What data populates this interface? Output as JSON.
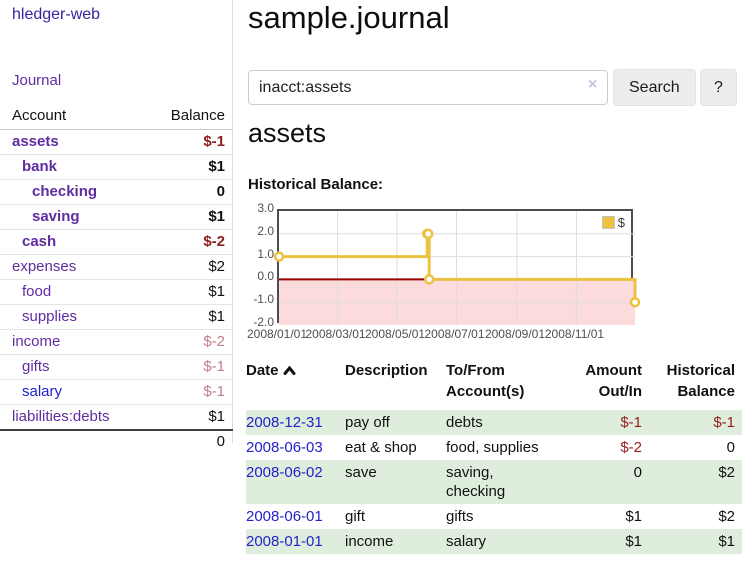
{
  "colors": {
    "brand_purple": "#3b22a0",
    "link_purple": "#5f2da0",
    "link_blue": "#2222cc",
    "negative_strong": "#8f1d1d",
    "negative": "#971c1c",
    "negative_muted": "#c1808c",
    "row_green": "#dfeedc",
    "chart_line_gold": "#edc240",
    "chart_negative_region": "#fbdbdb",
    "chart_zero_line": "#990000",
    "chart_grid": "#dddddd"
  },
  "app_title": "hledger-web",
  "sidebar": {
    "journal_link": "Journal",
    "account_header": "Account",
    "balance_header": "Balance",
    "accounts": [
      {
        "name": "assets",
        "balance": "$-1",
        "level": 0,
        "bold": true,
        "balance_style": "neg-strong"
      },
      {
        "name": "bank",
        "balance": "$1",
        "level": 1,
        "bold": true,
        "balance_style": "pos"
      },
      {
        "name": "checking",
        "balance": "0",
        "level": 2,
        "bold": true,
        "balance_style": "pos"
      },
      {
        "name": "saving",
        "balance": "$1",
        "level": 2,
        "bold": true,
        "balance_style": "pos"
      },
      {
        "name": "cash",
        "balance": "$-2",
        "level": 1,
        "bold": true,
        "balance_style": "neg-strong"
      },
      {
        "name": "expenses",
        "balance": "$2",
        "level": 0,
        "bold": false,
        "balance_style": "pos"
      },
      {
        "name": "food",
        "balance": "$1",
        "level": 1,
        "bold": false,
        "balance_style": "pos"
      },
      {
        "name": "supplies",
        "balance": "$1",
        "level": 1,
        "bold": false,
        "balance_style": "pos"
      },
      {
        "name": "income",
        "balance": "$-2",
        "level": 0,
        "bold": false,
        "balance_style": "neg-muted"
      },
      {
        "name": "gifts",
        "balance": "$-1",
        "level": 1,
        "bold": false,
        "balance_style": "neg-muted"
      },
      {
        "name": "salary",
        "balance": "$-1",
        "level": 1,
        "bold": false,
        "balance_style": "neg-muted",
        "link_color": "blue"
      },
      {
        "name": "liabilities:debts",
        "balance": "$1",
        "level": 0,
        "bold": false,
        "balance_style": "pos"
      }
    ],
    "total": "0"
  },
  "header": {
    "title": "sample.journal"
  },
  "search": {
    "value": "inacct:assets",
    "clear_icon": "×",
    "search_button": "Search",
    "help_button": "?"
  },
  "account_page": {
    "heading": "assets",
    "chart_label": "Historical Balance:"
  },
  "chart_data": {
    "type": "line",
    "title": "Historical Balance",
    "step": true,
    "legend": {
      "label": "$",
      "position": "top-right"
    },
    "xlim": [
      "2008-01-01",
      "2008-12-31"
    ],
    "ylim": [
      -2,
      3
    ],
    "x_ticks": [
      {
        "label": "2008/01/01",
        "date": "2008-01-01"
      },
      {
        "label": "2008/03/01",
        "date": "2008-03-01"
      },
      {
        "label": "2008/05/01",
        "date": "2008-05-01"
      },
      {
        "label": "2008/07/01",
        "date": "2008-07-01"
      },
      {
        "label": "2008/09/01",
        "date": "2008-09-01"
      },
      {
        "label": "2008/11/01",
        "date": "2008-11-01"
      }
    ],
    "y_ticks": [
      {
        "label": "3.0",
        "value": 3
      },
      {
        "label": "2.0",
        "value": 2
      },
      {
        "label": "1.0",
        "value": 1
      },
      {
        "label": "0.0",
        "value": 0
      },
      {
        "label": "-1.0",
        "value": -1
      },
      {
        "label": "-2.0",
        "value": -2
      }
    ],
    "series": [
      {
        "name": "$",
        "points": [
          [
            "2008-01-01",
            1
          ],
          [
            "2008-06-01",
            2
          ],
          [
            "2008-06-02",
            2
          ],
          [
            "2008-06-03",
            0
          ],
          [
            "2008-12-31",
            -1
          ]
        ]
      }
    ]
  },
  "register": {
    "headers": {
      "date": "Date",
      "description": "Description",
      "accounts": "To/From Account(s)",
      "amount": "Amount Out/In",
      "balance": "Historical Balance"
    },
    "rows": [
      {
        "date": "2008-12-31",
        "description": "pay off",
        "accounts": "debts",
        "amount": "$-1",
        "balance": "$-1"
      },
      {
        "date": "2008-06-03",
        "description": "eat & shop",
        "accounts": "food, supplies",
        "amount": "$-2",
        "balance": "0"
      },
      {
        "date": "2008-06-02",
        "description": "save",
        "accounts": "saving,\nchecking",
        "amount": "0",
        "balance": "$2"
      },
      {
        "date": "2008-06-01",
        "description": "gift",
        "accounts": "gifts",
        "amount": "$1",
        "balance": "$2"
      },
      {
        "date": "2008-01-01",
        "description": "income",
        "accounts": "salary",
        "amount": "$1",
        "balance": "$1"
      }
    ]
  }
}
